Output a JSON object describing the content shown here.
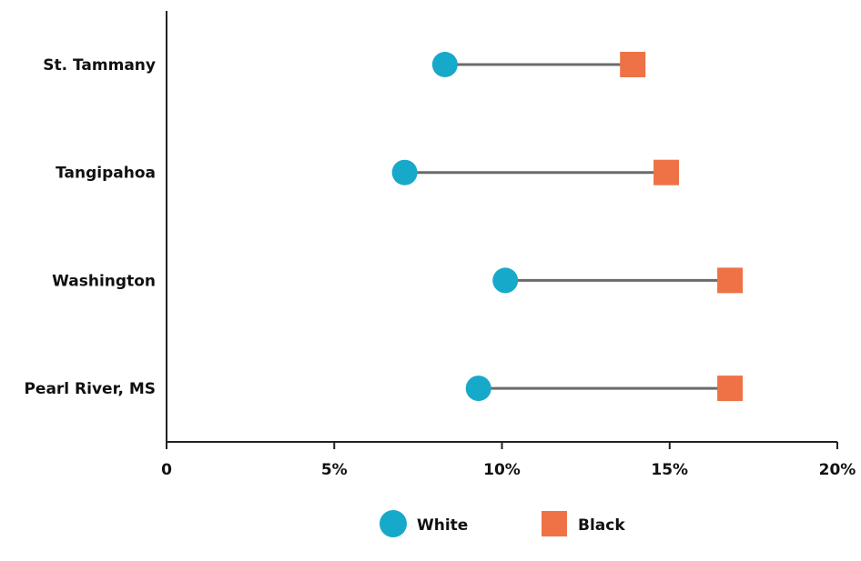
{
  "chart_data": {
    "type": "dumbbell",
    "categories": [
      "St. Tammany",
      "Tangipahoa",
      "Washington",
      "Pearl River, MS"
    ],
    "series": [
      {
        "name": "White",
        "values": [
          8.3,
          7.1,
          10.1,
          9.3
        ],
        "color": "#17a9c9",
        "marker": "circle"
      },
      {
        "name": "Black",
        "values": [
          13.9,
          14.9,
          16.8,
          16.8
        ],
        "color": "#ee7245",
        "marker": "square"
      }
    ],
    "connector_color": "#6b6b6b",
    "x_ticks": [
      0,
      5,
      10,
      15,
      20
    ],
    "x_tick_labels": [
      "0",
      "5%",
      "10%",
      "15%",
      "20%"
    ],
    "xlim": [
      0,
      20
    ],
    "grid": false,
    "legend_position": "bottom-center",
    "title": "",
    "xlabel": "",
    "ylabel": ""
  }
}
